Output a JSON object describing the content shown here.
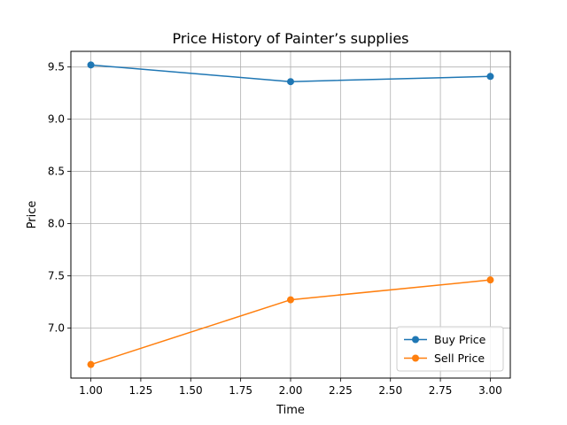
{
  "chart_data": {
    "type": "line",
    "title": "Price History of Painter’s supplies",
    "xlabel": "Time",
    "ylabel": "Price",
    "x": [
      1.0,
      2.0,
      3.0
    ],
    "series": [
      {
        "name": "Buy Price",
        "values": [
          9.52,
          9.36,
          9.41
        ],
        "color": "#1f77b4"
      },
      {
        "name": "Sell Price",
        "values": [
          6.65,
          7.27,
          7.46
        ],
        "color": "#ff7f0e"
      }
    ],
    "xlim": [
      0.9,
      3.1
    ],
    "ylim": [
      6.52,
      9.65
    ],
    "xticks": [
      1.0,
      1.25,
      1.5,
      1.75,
      2.0,
      2.25,
      2.5,
      2.75,
      3.0
    ],
    "xtick_labels": [
      "1.00",
      "1.25",
      "1.50",
      "1.75",
      "2.00",
      "2.25",
      "2.50",
      "2.75",
      "3.00"
    ],
    "yticks": [
      7.0,
      7.5,
      8.0,
      8.5,
      9.0,
      9.5
    ],
    "ytick_labels": [
      "7.0",
      "7.5",
      "8.0",
      "8.5",
      "9.0",
      "9.5"
    ],
    "grid": true,
    "legend_position": "lower-right"
  }
}
